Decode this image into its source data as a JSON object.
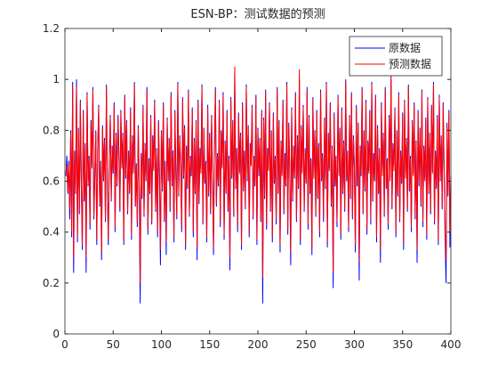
{
  "chart_data": {
    "type": "line",
    "title": "ESN-BP：测试数据的预测",
    "xlim": [
      0,
      400
    ],
    "xticks": [
      0,
      50,
      100,
      150,
      200,
      250,
      300,
      350,
      400
    ],
    "ylim": [
      0,
      1.2
    ],
    "yticks": [
      0,
      0.2,
      0.4,
      0.6,
      0.8,
      1,
      1.2
    ],
    "legend": "upper right",
    "x": [
      1,
      2,
      3,
      4,
      5,
      6,
      7,
      8,
      9,
      10,
      11,
      12,
      13,
      14,
      15,
      16,
      17,
      18,
      19,
      20,
      21,
      22,
      23,
      24,
      25,
      26,
      27,
      28,
      29,
      30,
      31,
      32,
      33,
      34,
      35,
      36,
      37,
      38,
      39,
      40,
      41,
      42,
      43,
      44,
      45,
      46,
      47,
      48,
      49,
      50,
      51,
      52,
      53,
      54,
      55,
      56,
      57,
      58,
      59,
      60,
      61,
      62,
      63,
      64,
      65,
      66,
      67,
      68,
      69,
      70,
      71,
      72,
      73,
      74,
      75,
      76,
      77,
      78,
      79,
      80,
      81,
      82,
      83,
      84,
      85,
      86,
      87,
      88,
      89,
      90,
      91,
      92,
      93,
      94,
      95,
      96,
      97,
      98,
      99,
      100,
      101,
      102,
      103,
      104,
      105,
      106,
      107,
      108,
      109,
      110,
      111,
      112,
      113,
      114,
      115,
      116,
      117,
      118,
      119,
      120,
      121,
      122,
      123,
      124,
      125,
      126,
      127,
      128,
      129,
      130,
      131,
      132,
      133,
      134,
      135,
      136,
      137,
      138,
      139,
      140,
      141,
      142,
      143,
      144,
      145,
      146,
      147,
      148,
      149,
      150,
      151,
      152,
      153,
      154,
      155,
      156,
      157,
      158,
      159,
      160,
      161,
      162,
      163,
      164,
      165,
      166,
      167,
      168,
      169,
      170,
      171,
      172,
      173,
      174,
      175,
      176,
      177,
      178,
      179,
      180,
      181,
      182,
      183,
      184,
      185,
      186,
      187,
      188,
      189,
      190,
      191,
      192,
      193,
      194,
      195,
      196,
      197,
      198,
      199,
      200,
      201,
      202,
      203,
      204,
      205,
      206,
      207,
      208,
      209,
      210,
      211,
      212,
      213,
      214,
      215,
      216,
      217,
      218,
      219,
      220,
      221,
      222,
      223,
      224,
      225,
      226,
      227,
      228,
      229,
      230,
      231,
      232,
      233,
      234,
      235,
      236,
      237,
      238,
      239,
      240,
      241,
      242,
      243,
      244,
      245,
      246,
      247,
      248,
      249,
      250,
      251,
      252,
      253,
      254,
      255,
      256,
      257,
      258,
      259,
      260,
      261,
      262,
      263,
      264,
      265,
      266,
      267,
      268,
      269,
      270,
      271,
      272,
      273,
      274,
      275,
      276,
      277,
      278,
      279,
      280,
      281,
      282,
      283,
      284,
      285,
      286,
      287,
      288,
      289,
      290,
      291,
      292,
      293,
      294,
      295,
      296,
      297,
      298,
      299,
      300,
      301,
      302,
      303,
      304,
      305,
      306,
      307,
      308,
      309,
      310,
      311,
      312,
      313,
      314,
      315,
      316,
      317,
      318,
      319,
      320,
      321,
      322,
      323,
      324,
      325,
      326,
      327,
      328,
      329,
      330,
      331,
      332,
      333,
      334,
      335,
      336,
      337,
      338,
      339,
      340,
      341,
      342,
      343,
      344,
      345,
      346,
      347,
      348,
      349,
      350,
      351,
      352,
      353,
      354,
      355,
      356,
      357,
      358,
      359,
      360,
      361,
      362,
      363,
      364,
      365,
      366,
      367,
      368,
      369,
      370,
      371,
      372,
      373,
      374,
      375,
      376,
      377,
      378,
      379,
      380,
      381,
      382,
      383,
      384,
      385,
      386,
      387,
      388,
      389,
      390,
      391,
      392,
      393,
      394,
      395,
      396,
      397,
      398,
      399,
      400
    ],
    "series": [
      {
        "name": "原数据",
        "color": "#0000ff",
        "values": [
          0.62,
          0.7,
          0.55,
          0.68,
          0.45,
          0.8,
          0.38,
          0.99,
          0.24,
          0.72,
          0.55,
          1.0,
          0.36,
          0.81,
          0.47,
          0.92,
          0.6,
          0.33,
          0.88,
          0.52,
          0.75,
          0.24,
          0.95,
          0.58,
          0.7,
          0.41,
          0.84,
          0.66,
          0.97,
          0.45,
          0.62,
          0.8,
          0.35,
          0.73,
          0.9,
          0.5,
          0.68,
          0.29,
          0.82,
          0.6,
          0.77,
          0.44,
          0.98,
          0.57,
          0.35,
          0.69,
          0.86,
          0.52,
          0.74,
          0.63,
          0.91,
          0.4,
          0.79,
          0.58,
          0.86,
          0.71,
          0.48,
          0.88,
          0.66,
          0.79,
          0.35,
          0.94,
          0.61,
          0.84,
          0.47,
          0.72,
          0.55,
          0.89,
          0.37,
          0.78,
          0.64,
          0.99,
          0.5,
          0.67,
          0.42,
          0.82,
          0.58,
          0.12,
          0.71,
          0.53,
          0.9,
          0.46,
          0.75,
          0.6,
          0.97,
          0.39,
          0.69,
          0.55,
          0.86,
          0.43,
          0.78,
          0.65,
          0.92,
          0.48,
          0.73,
          0.38,
          0.84,
          0.62,
          0.27,
          0.8,
          0.56,
          0.91,
          0.44,
          0.68,
          0.31,
          0.85,
          0.6,
          0.77,
          0.48,
          0.95,
          0.58,
          0.72,
          0.36,
          0.88,
          0.63,
          0.45,
          0.99,
          0.54,
          0.78,
          0.66,
          0.4,
          0.93,
          0.61,
          0.82,
          0.33,
          0.74,
          0.57,
          0.96,
          0.46,
          0.7,
          0.62,
          0.89,
          0.38,
          0.77,
          0.55,
          0.84,
          0.29,
          0.92,
          0.51,
          0.73,
          0.64,
          0.98,
          0.43,
          0.81,
          0.59,
          0.68,
          0.36,
          0.9,
          0.54,
          0.79,
          0.47,
          0.86,
          0.63,
          0.31,
          0.75,
          0.97,
          0.5,
          0.71,
          0.58,
          0.92,
          0.42,
          0.8,
          0.66,
          0.95,
          0.37,
          0.76,
          0.55,
          0.88,
          0.48,
          0.7,
          0.25,
          0.93,
          0.61,
          0.84,
          0.46,
          1.03,
          0.57,
          0.73,
          0.4,
          0.87,
          0.64,
          0.79,
          0.33,
          0.91,
          0.56,
          0.72,
          0.49,
          0.98,
          0.6,
          0.82,
          0.38,
          0.75,
          0.67,
          0.9,
          0.45,
          0.7,
          0.58,
          0.94,
          0.35,
          0.81,
          0.62,
          0.77,
          0.44,
          0.88,
          0.12,
          0.85,
          0.53,
          0.96,
          0.41,
          0.73,
          0.65,
          0.91,
          0.48,
          0.8,
          0.36,
          0.87,
          0.59,
          0.7,
          0.43,
          0.97,
          0.55,
          0.84,
          0.32,
          0.76,
          0.63,
          0.92,
          0.47,
          0.71,
          0.58,
          0.99,
          0.39,
          0.83,
          0.66,
          0.27,
          0.89,
          0.52,
          0.74,
          0.61,
          0.95,
          0.44,
          0.78,
          0.57,
          1.0,
          0.35,
          0.82,
          0.64,
          0.9,
          0.48,
          0.73,
          0.59,
          0.97,
          0.41,
          0.86,
          0.55,
          0.69,
          0.31,
          0.93,
          0.62,
          0.8,
          0.46,
          0.88,
          0.53,
          0.75,
          0.38,
          0.96,
          0.6,
          0.71,
          0.44,
          0.85,
          0.57,
          0.99,
          0.34,
          0.79,
          0.65,
          0.91,
          0.5,
          0.74,
          0.18,
          0.87,
          0.58,
          0.7,
          0.42,
          0.94,
          0.63,
          0.81,
          0.37,
          0.89,
          0.55,
          0.76,
          0.48,
          1.0,
          0.6,
          0.72,
          0.4,
          0.86,
          0.53,
          0.95,
          0.45,
          0.78,
          0.66,
          0.32,
          0.9,
          0.58,
          0.83,
          0.21,
          0.74,
          0.62,
          0.97,
          0.47,
          0.8,
          0.56,
          0.92,
          0.39,
          0.76,
          0.64,
          0.88,
          0.43,
          0.99,
          0.52,
          0.71,
          0.6,
          0.94,
          0.36,
          0.82,
          0.55,
          0.73,
          0.28,
          0.91,
          0.63,
          0.79,
          0.46,
          0.97,
          0.57,
          0.69,
          0.41,
          0.86,
          0.61,
          1.0,
          0.49,
          0.75,
          0.65,
          0.89,
          0.38,
          0.8,
          0.54,
          0.95,
          0.44,
          0.72,
          0.59,
          0.87,
          0.33,
          0.92,
          0.62,
          0.77,
          0.48,
          0.98,
          0.56,
          0.7,
          0.4,
          0.84,
          0.63,
          0.91,
          0.45,
          0.76,
          0.28,
          0.88,
          0.58,
          0.81,
          0.5,
          0.96,
          0.42,
          0.74,
          0.61,
          0.85,
          0.37,
          0.93,
          0.55,
          0.79,
          0.47,
          0.9,
          0.64,
          0.99,
          0.43,
          0.72,
          0.57,
          0.86,
          0.35,
          0.94,
          0.6,
          0.78,
          0.49,
          0.91,
          0.66,
          0.38,
          0.2,
          0.83,
          0.54,
          0.88,
          0.34,
          0.62
        ]
      },
      {
        "name": "预测数据",
        "color": "#ff0000",
        "values": [
          0.63,
          0.66,
          0.56,
          0.67,
          0.49,
          0.79,
          0.4,
          0.98,
          0.3,
          0.71,
          0.56,
          0.97,
          0.38,
          0.8,
          0.48,
          0.91,
          0.61,
          0.35,
          0.87,
          0.53,
          0.74,
          0.3,
          0.94,
          0.59,
          0.69,
          0.43,
          0.83,
          0.65,
          0.96,
          0.46,
          0.63,
          0.79,
          0.37,
          0.72,
          0.89,
          0.51,
          0.67,
          0.32,
          0.81,
          0.61,
          0.76,
          0.45,
          0.97,
          0.58,
          0.37,
          0.68,
          0.85,
          0.53,
          0.73,
          0.64,
          0.9,
          0.42,
          0.78,
          0.59,
          0.85,
          0.7,
          0.49,
          0.87,
          0.65,
          0.78,
          0.37,
          0.93,
          0.62,
          0.83,
          0.48,
          0.71,
          0.56,
          0.88,
          0.39,
          0.77,
          0.63,
          0.98,
          0.51,
          0.66,
          0.44,
          0.81,
          0.59,
          0.2,
          0.7,
          0.54,
          0.89,
          0.47,
          0.74,
          0.61,
          0.96,
          0.41,
          0.68,
          0.56,
          0.85,
          0.44,
          0.77,
          0.64,
          0.91,
          0.49,
          0.72,
          0.4,
          0.83,
          0.63,
          0.33,
          0.79,
          0.57,
          0.9,
          0.45,
          0.67,
          0.36,
          0.84,
          0.61,
          0.76,
          0.49,
          0.94,
          0.59,
          0.71,
          0.38,
          0.87,
          0.62,
          0.46,
          0.98,
          0.55,
          0.77,
          0.65,
          0.42,
          0.92,
          0.62,
          0.81,
          0.35,
          0.73,
          0.58,
          0.95,
          0.47,
          0.69,
          0.63,
          0.88,
          0.4,
          0.76,
          0.56,
          0.83,
          0.34,
          0.91,
          0.52,
          0.72,
          0.63,
          0.97,
          0.44,
          0.8,
          0.6,
          0.67,
          0.38,
          0.89,
          0.55,
          0.78,
          0.48,
          0.85,
          0.62,
          0.34,
          0.74,
          0.96,
          0.51,
          0.7,
          0.59,
          0.91,
          0.44,
          0.79,
          0.65,
          0.94,
          0.39,
          0.75,
          0.56,
          0.87,
          0.49,
          0.69,
          0.3,
          0.92,
          0.62,
          0.83,
          0.47,
          1.05,
          0.58,
          0.72,
          0.42,
          0.86,
          0.63,
          0.78,
          0.35,
          0.9,
          0.57,
          0.71,
          0.5,
          0.97,
          0.61,
          0.81,
          0.4,
          0.74,
          0.66,
          0.89,
          0.46,
          0.69,
          0.59,
          0.93,
          0.37,
          0.8,
          0.63,
          0.76,
          0.45,
          0.87,
          0.22,
          0.84,
          0.54,
          0.95,
          0.43,
          0.72,
          0.64,
          0.9,
          0.49,
          0.79,
          0.38,
          0.86,
          0.6,
          0.69,
          0.45,
          0.96,
          0.56,
          0.83,
          0.35,
          0.75,
          0.62,
          0.91,
          0.48,
          0.7,
          0.59,
          0.98,
          0.41,
          0.82,
          0.65,
          0.32,
          0.88,
          0.53,
          0.73,
          0.62,
          0.94,
          0.45,
          0.77,
          0.58,
          1.04,
          0.37,
          0.81,
          0.63,
          0.89,
          0.49,
          0.72,
          0.6,
          0.96,
          0.43,
          0.85,
          0.56,
          0.68,
          0.34,
          0.92,
          0.61,
          0.79,
          0.47,
          0.87,
          0.54,
          0.74,
          0.4,
          0.95,
          0.61,
          0.7,
          0.46,
          0.84,
          0.58,
          0.98,
          0.36,
          0.78,
          0.64,
          0.9,
          0.51,
          0.73,
          0.24,
          0.86,
          0.59,
          0.69,
          0.44,
          0.93,
          0.62,
          0.8,
          0.39,
          0.88,
          0.56,
          0.75,
          0.49,
          0.99,
          0.61,
          0.71,
          0.42,
          0.85,
          0.54,
          0.94,
          0.46,
          0.77,
          0.65,
          0.35,
          0.89,
          0.59,
          0.82,
          0.28,
          0.73,
          0.63,
          0.96,
          0.48,
          0.79,
          0.57,
          0.91,
          0.41,
          0.75,
          0.63,
          0.87,
          0.45,
          0.98,
          0.53,
          0.7,
          0.61,
          0.93,
          0.38,
          0.81,
          0.56,
          0.72,
          0.33,
          0.9,
          0.62,
          0.78,
          0.47,
          0.96,
          0.58,
          0.68,
          0.43,
          0.85,
          0.6,
          1.04,
          0.5,
          0.74,
          0.64,
          0.88,
          0.4,
          0.79,
          0.55,
          0.94,
          0.45,
          0.71,
          0.6,
          0.86,
          0.36,
          0.91,
          0.61,
          0.76,
          0.49,
          0.97,
          0.57,
          0.69,
          0.42,
          0.83,
          0.62,
          0.9,
          0.46,
          0.75,
          0.33,
          0.87,
          0.59,
          0.8,
          0.51,
          0.95,
          0.44,
          0.73,
          0.6,
          0.84,
          0.39,
          0.92,
          0.56,
          0.78,
          0.48,
          0.89,
          0.63,
          0.98,
          0.44,
          0.71,
          0.58,
          0.85,
          0.37,
          0.93,
          0.61,
          0.77,
          0.5,
          0.9,
          0.65,
          0.4,
          0.29,
          0.82,
          0.55,
          0.87,
          0.4,
          0.61
        ]
      }
    ]
  }
}
